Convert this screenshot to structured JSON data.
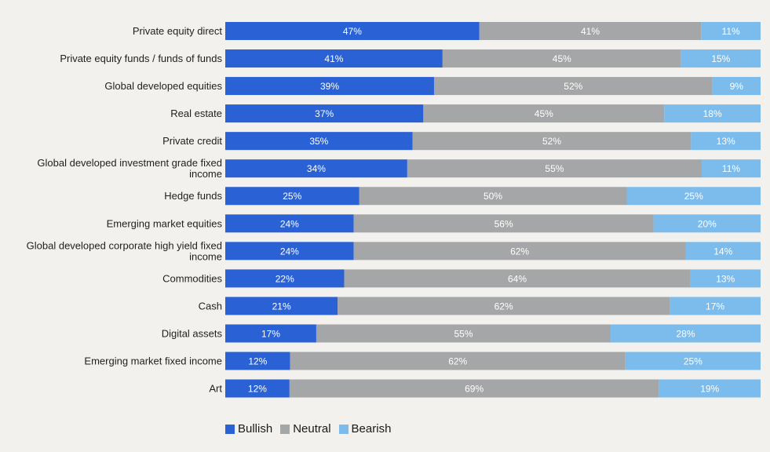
{
  "chart_data": {
    "type": "bar",
    "orientation": "horizontal",
    "stacked": true,
    "title": "",
    "xlabel": "",
    "ylabel": "",
    "categories": [
      [
        "Private equity direct"
      ],
      [
        "Private equity funds / funds of funds"
      ],
      [
        "Global developed equities"
      ],
      [
        "Real estate"
      ],
      [
        "Private credit"
      ],
      [
        "Global developed investment grade fixed",
        "income"
      ],
      [
        "Hedge funds"
      ],
      [
        "Emerging market equities"
      ],
      [
        "Global developed corporate high yield fixed",
        "income"
      ],
      [
        "Commodities"
      ],
      [
        "Cash"
      ],
      [
        "Digital assets"
      ],
      [
        "Emerging market fixed income"
      ],
      [
        "Art"
      ]
    ],
    "series": [
      {
        "name": "Bullish",
        "color": "#2a62d6",
        "values": [
          47,
          41,
          39,
          37,
          35,
          34,
          25,
          24,
          24,
          22,
          21,
          17,
          12,
          12
        ]
      },
      {
        "name": "Neutral",
        "color": "#a5a6a7",
        "values": [
          41,
          45,
          52,
          45,
          52,
          55,
          50,
          56,
          62,
          64,
          62,
          55,
          62,
          69
        ]
      },
      {
        "name": "Bearish",
        "color": "#7cbcec",
        "values": [
          11,
          15,
          9,
          18,
          13,
          11,
          25,
          20,
          14,
          13,
          17,
          28,
          25,
          19
        ]
      }
    ],
    "value_suffix": "%",
    "legend_position": "bottom-left"
  },
  "legend": {
    "items": [
      {
        "label": "Bullish",
        "color": "#2a62d6"
      },
      {
        "label": "Neutral",
        "color": "#a5a6a7"
      },
      {
        "label": "Bearish",
        "color": "#7cbcec"
      }
    ]
  }
}
